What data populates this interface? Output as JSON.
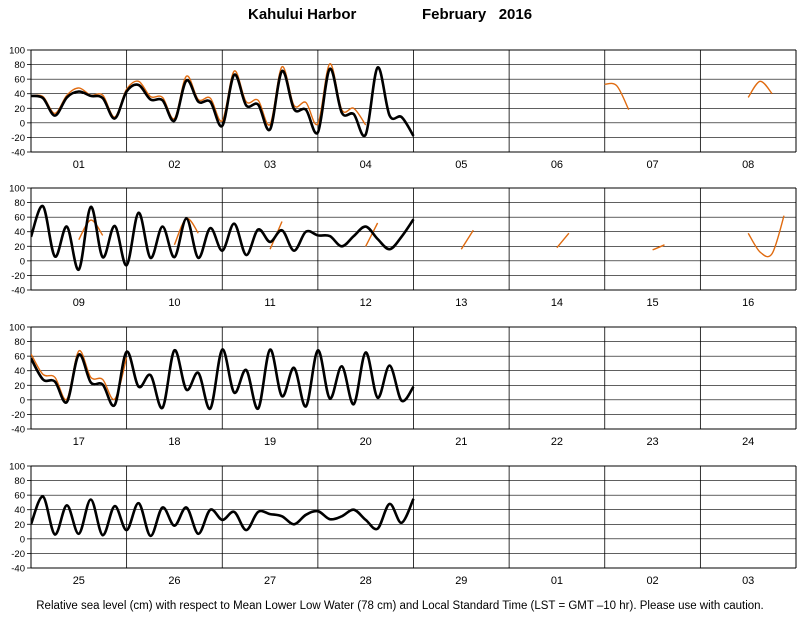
{
  "chart_data": {
    "type": "line",
    "title": {
      "station": "Kahului Harbor",
      "month_year": "February   2016"
    },
    "caption": "Relative sea level (cm) with respect to Mean Lower Low Water (78 cm) and Local Standard Time (LST = GMT –10 hr). Please use with caution.",
    "ylim": [
      -40,
      100
    ],
    "yticks": [
      -40,
      -20,
      0,
      20,
      40,
      60,
      80,
      100
    ],
    "grid": true,
    "series_names": {
      "predicted": "",
      "observed": ""
    },
    "series_colors": {
      "predicted": "#000000",
      "observed": "#e06b10"
    },
    "panels": [
      {
        "day_labels": [
          "01",
          "02",
          "03",
          "04",
          "05",
          "06",
          "07",
          "08"
        ],
        "predicted": {
          "day_offset": 0,
          "step_hours": 3,
          "y": [
            37,
            34,
            10,
            35,
            43,
            37,
            34,
            6,
            43,
            52,
            32,
            31,
            3,
            58,
            29,
            29,
            -4,
            66,
            24,
            25,
            -9,
            71,
            19,
            18,
            -13,
            74,
            14,
            12,
            -16,
            76,
            10,
            8,
            -18
          ]
        },
        "observed": [
          {
            "start_day": 0,
            "step_hours": 3,
            "y": [
              37,
              36,
              13,
              38,
              48,
              38,
              38,
              8,
              46,
              57,
              36,
              35,
              6,
              64,
              32,
              34,
              3,
              71,
              29,
              31,
              -2,
              77,
              24,
              28,
              -1,
              81,
              18,
              20,
              -3
            ]
          },
          {
            "start_day": 6,
            "step_hours": 3,
            "y": [
              53,
              51,
              18
            ]
          },
          {
            "start_day": 7.5,
            "step_hours": 3,
            "y": [
              35,
              57,
              40
            ]
          }
        ]
      },
      {
        "day_labels": [
          "09",
          "10",
          "11",
          "12",
          "13",
          "14",
          "15",
          "16"
        ],
        "predicted": {
          "day_offset": 8,
          "step_hours": 3,
          "y": [
            33,
            75,
            6,
            47,
            -12,
            74,
            5,
            48,
            -6,
            66,
            4,
            47,
            5,
            58,
            4,
            45,
            14,
            51,
            8,
            43,
            26,
            42,
            14,
            40,
            35,
            34,
            20,
            34,
            47,
            30,
            16,
            33,
            57
          ]
        },
        "observed": [
          {
            "start_day": 8.5,
            "step_hours": 3,
            "y": [
              29,
              56,
              35
            ]
          },
          {
            "start_day": 9.5,
            "step_hours": 3,
            "y": [
              22,
              58,
              38
            ]
          },
          {
            "start_day": 10.5,
            "step_hours": 3,
            "y": [
              16,
              54
            ]
          },
          {
            "start_day": 11.5,
            "step_hours": 3,
            "y": [
              20,
              52
            ]
          },
          {
            "start_day": 12.5,
            "step_hours": 3,
            "y": [
              16,
              42
            ]
          },
          {
            "start_day": 13.5,
            "step_hours": 3,
            "y": [
              18,
              38
            ]
          },
          {
            "start_day": 14.5,
            "step_hours": 3,
            "y": [
              15,
              22
            ]
          },
          {
            "start_day": 15.5,
            "step_hours": 3,
            "y": [
              38,
              12,
              10,
              62
            ]
          }
        ]
      },
      {
        "day_labels": [
          "17",
          "18",
          "19",
          "20",
          "21",
          "22",
          "23",
          "24"
        ],
        "predicted": {
          "day_offset": 16,
          "step_hours": 3,
          "y": [
            57,
            28,
            25,
            -3,
            62,
            24,
            21,
            -7,
            66,
            18,
            34,
            -11,
            68,
            14,
            37,
            -12,
            69,
            10,
            41,
            -12,
            69,
            5,
            44,
            -9,
            68,
            2,
            46,
            -6,
            65,
            3,
            47,
            -1,
            18
          ]
        },
        "observed": [
          {
            "start_day": 16,
            "step_hours": 3,
            "y": [
              63,
              35,
              31,
              1,
              67,
              31,
              28,
              1,
              58
            ]
          }
        ]
      },
      {
        "day_labels": [
          "25",
          "26",
          "27",
          "28",
          "29",
          "01",
          "02",
          "03"
        ],
        "predicted": {
          "day_offset": 24,
          "step_hours": 3,
          "y": [
            20,
            58,
            6,
            46,
            7,
            54,
            5,
            45,
            12,
            49,
            4,
            43,
            18,
            43,
            7,
            40,
            26,
            37,
            12,
            37,
            34,
            31,
            20,
            33,
            38,
            27,
            31,
            40,
            26,
            14,
            48,
            22,
            55
          ]
        },
        "observed": []
      }
    ]
  }
}
